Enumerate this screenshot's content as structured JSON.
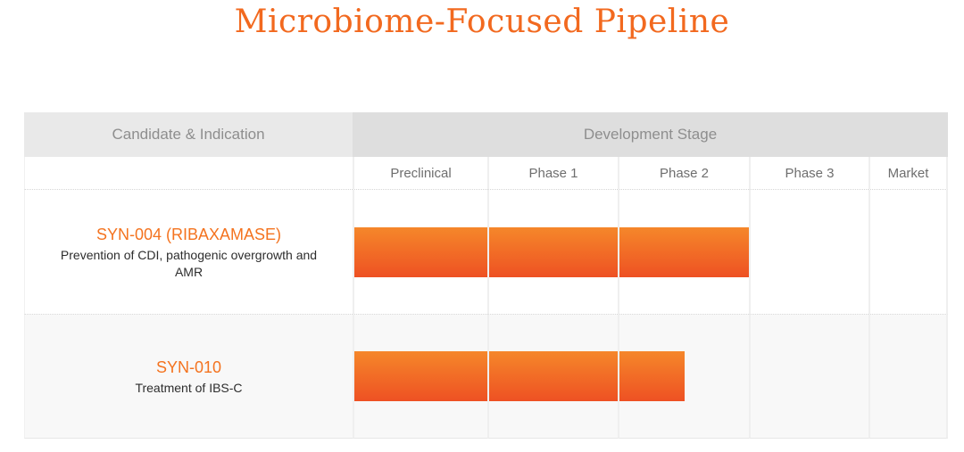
{
  "page": {
    "title": "Microbiome-Focused Pipeline"
  },
  "colors": {
    "title_orange": "#f2691f",
    "candidate_orange": "#f4731f",
    "bar_gradient_top": "#f5872a",
    "bar_gradient_bottom": "#ee5123",
    "header_candidate_bg": "#e9e9e9",
    "header_stage_bg": "#dedede",
    "alt_row_bg": "#f8f8f8"
  },
  "table": {
    "candidate_header": "Candidate & Indication",
    "stage_header": "Development Stage",
    "stages": [
      "Preclinical",
      "Phase 1",
      "Phase 2",
      "Phase 3",
      "Market"
    ],
    "rows": [
      {
        "candidate": "SYN-004 (RIBAXAMASE)",
        "indication": "Prevention of CDI, pathogenic overgrowth and AMR"
      },
      {
        "candidate": "SYN-010",
        "indication": "Treatment of IBS-C"
      }
    ]
  },
  "chart_data": {
    "type": "bar",
    "title": "Microbiome-Focused Pipeline",
    "orientation": "horizontal",
    "x_axis_stages": [
      "Preclinical",
      "Phase 1",
      "Phase 2",
      "Phase 3",
      "Market"
    ],
    "series": [
      {
        "name": "SYN-004 (RIBAXAMASE)",
        "indication": "Prevention of CDI, pathogenic overgrowth and AMR",
        "stages_reached": 3,
        "stage_fills": [
          1,
          1,
          1,
          0,
          0
        ]
      },
      {
        "name": "SYN-010",
        "indication": "Treatment of IBS-C",
        "stages_reached": 2.5,
        "stage_fills": [
          1,
          1,
          0.5,
          0,
          0
        ]
      }
    ],
    "legend": false,
    "grid": "column-dividers-only"
  }
}
